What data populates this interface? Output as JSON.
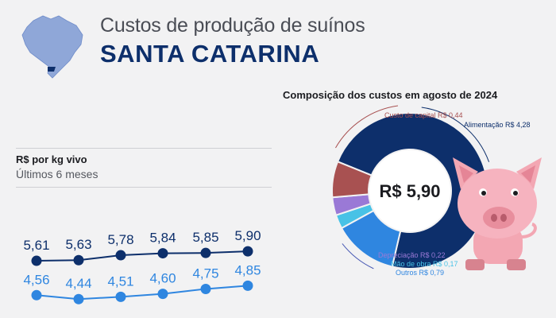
{
  "header": {
    "subtitle": "Custos de produção de suínos",
    "title": "SANTA CATARINA"
  },
  "trend": {
    "unit_label": "R$ por kg vivo",
    "period_label": "Últimos 6 meses"
  },
  "composition": {
    "title": "Composição dos custos em agosto de 2024",
    "total_label": "R$ 5,90"
  },
  "colors": {
    "navy": "#0d2f6b",
    "blue": "#2f86e0",
    "red": "#a85151",
    "purple": "#9a79d6",
    "cyan": "#48c2e6",
    "pig_pink": "#f3a7b3"
  },
  "chart_data": [
    {
      "type": "line",
      "series": [
        {
          "values": [
            5.61,
            5.63,
            5.78,
            5.84,
            5.85,
            5.9
          ],
          "labels": [
            "5,61",
            "5,63",
            "5,78",
            "5,84",
            "5,85",
            "5,90"
          ],
          "color": "#0d2f6b"
        },
        {
          "values": [
            4.56,
            4.44,
            4.51,
            4.6,
            4.75,
            4.85
          ],
          "labels": [
            "4,56",
            "4,44",
            "4,51",
            "4,60",
            "4,75",
            "4,85"
          ],
          "color": "#2f86e0"
        }
      ]
    },
    {
      "type": "pie",
      "title": "Composição dos custos em agosto de 2024",
      "center_label": "R$ 5,90",
      "slices": [
        {
          "label": "Alimentação R$ 4,28",
          "value": 4.28,
          "color": "#0d2f6b"
        },
        {
          "label": "Outros R$ 0,79",
          "value": 0.79,
          "color": "#2f86e0"
        },
        {
          "label": "Mão de obra R$ 0,17",
          "value": 0.17,
          "color": "#48c2e6"
        },
        {
          "label": "Depreciação R$ 0,22",
          "value": 0.22,
          "color": "#9a79d6"
        },
        {
          "label": "Custo de capital R$ 0,44",
          "value": 0.44,
          "color": "#a85151"
        }
      ]
    }
  ]
}
